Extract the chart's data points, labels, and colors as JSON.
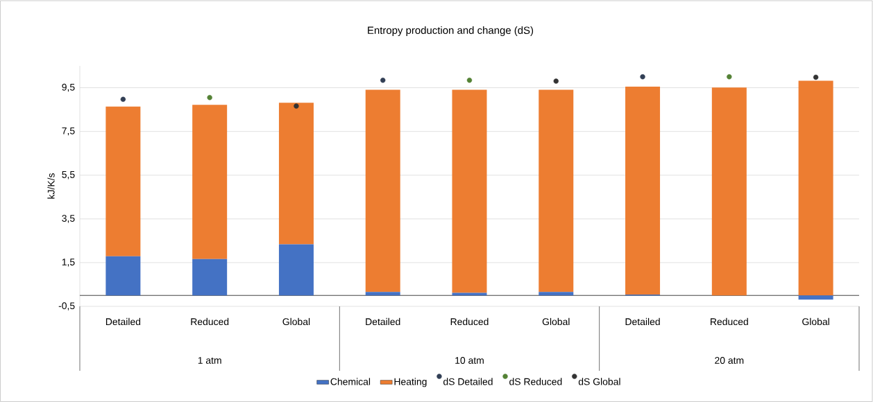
{
  "chart_data": {
    "type": "bar",
    "title": "Entropy production and change (dS)",
    "ylabel": "kJ/K/s",
    "categories": [
      "Detailed",
      "Reduced",
      "Global",
      "Detailed",
      "Reduced",
      "Global",
      "Detailed",
      "Reduced",
      "Global"
    ],
    "annotations": [
      "1 atm",
      "10 atm",
      "20 atm"
    ],
    "stacked": true,
    "series": [
      {
        "name": "Chemical",
        "color": "#4472c4",
        "values": [
          1.79,
          1.66,
          2.34,
          0.16,
          0.12,
          0.16,
          0.04,
          null,
          -0.19
        ]
      },
      {
        "name": "Heating",
        "color": "#ed7d31",
        "values": [
          6.85,
          7.06,
          6.47,
          9.25,
          9.29,
          9.25,
          9.51,
          9.51,
          9.82
        ]
      },
      {
        "name": "dS Detailed",
        "type": "scatter",
        "color": "#323f55",
        "values": [
          8.97,
          null,
          null,
          9.84,
          null,
          null,
          10.0,
          null,
          null
        ]
      },
      {
        "name": "dS Reduced",
        "type": "scatter",
        "color": "#548235",
        "values": [
          null,
          9.05,
          null,
          null,
          9.84,
          null,
          null,
          10.0,
          null
        ]
      },
      {
        "name": "dS Global",
        "type": "scatter",
        "color": "#333333",
        "values": [
          null,
          null,
          8.66,
          null,
          null,
          9.8,
          null,
          null,
          9.98
        ]
      }
    ],
    "ylim": [
      -0.5,
      10.5
    ],
    "yticks": [
      {
        "value": -0.5,
        "label": "-0,5"
      },
      {
        "value": 1.5,
        "label": "1,5"
      },
      {
        "value": 3.5,
        "label": "3,5"
      },
      {
        "value": 5.5,
        "label": "5,5"
      },
      {
        "value": 7.5,
        "label": "7,5"
      },
      {
        "value": 9.5,
        "label": "9,5"
      }
    ],
    "grid": "y",
    "legend": "bottom"
  }
}
